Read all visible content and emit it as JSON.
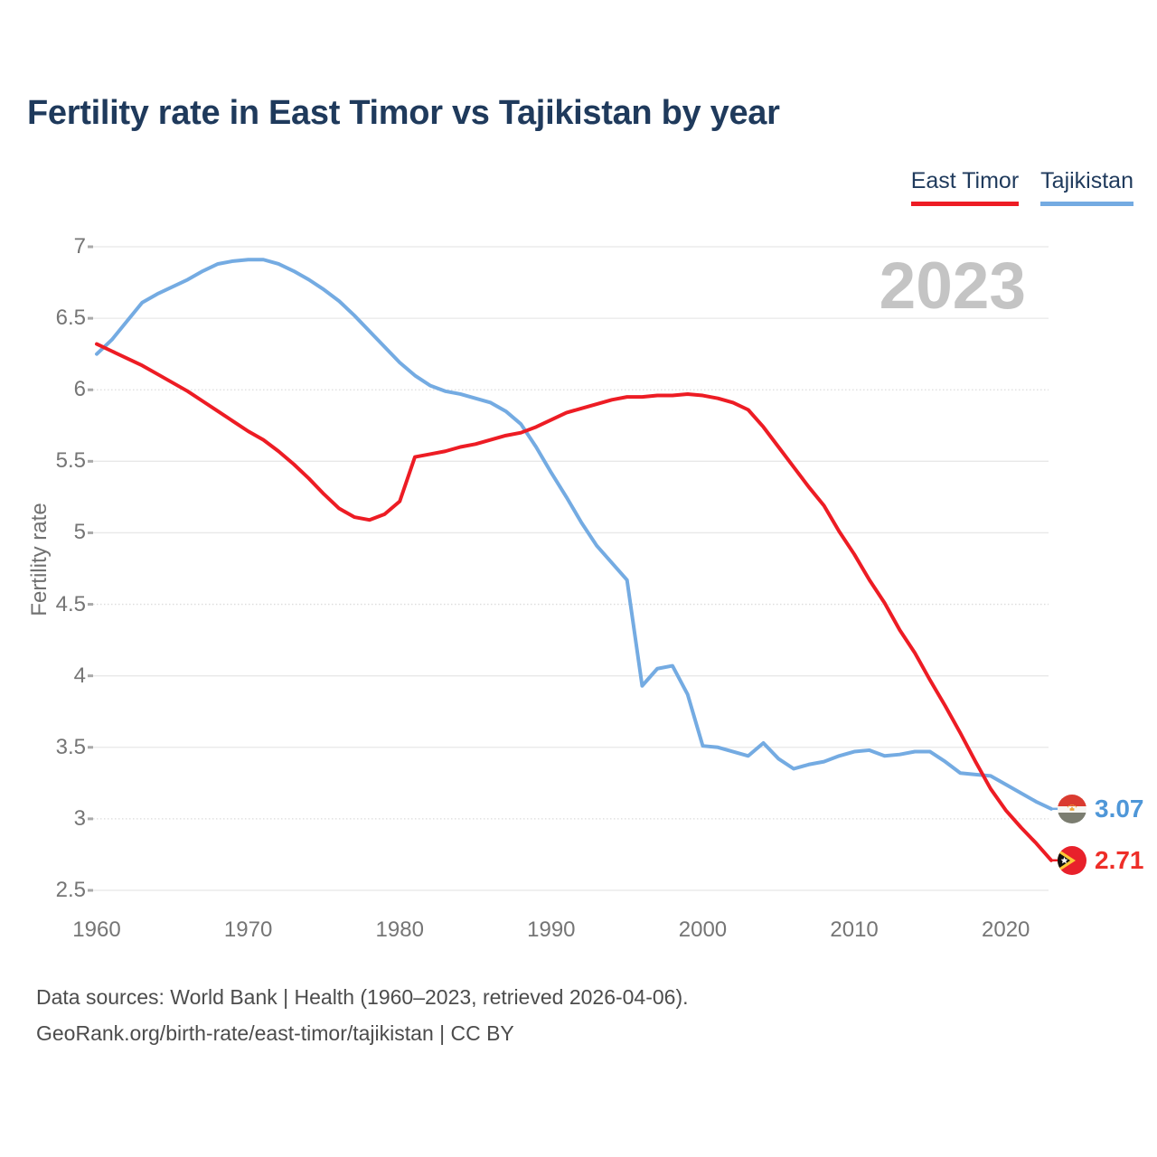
{
  "title": "Fertility rate in East Timor vs Tajikistan by year",
  "watermark": "2023",
  "legend": [
    {
      "label": "East Timor",
      "color": "#ed1c24"
    },
    {
      "label": "Tajikistan",
      "color": "#74abe2"
    }
  ],
  "y_axis": {
    "title": "Fertility rate",
    "ticks": [
      7,
      6.5,
      6,
      5.5,
      5,
      4.5,
      4,
      3.5,
      3,
      2.5
    ],
    "dotted_ticks": [
      6,
      4.5,
      3
    ]
  },
  "x_axis": {
    "ticks": [
      1960,
      1970,
      1980,
      1990,
      2000,
      2010,
      2020
    ]
  },
  "end_labels": [
    {
      "series": "Tajikistan",
      "value": "3.07",
      "color": "#4f97d8"
    },
    {
      "series": "East Timor",
      "value": "2.71",
      "color": "#ee2e28"
    }
  ],
  "footer": {
    "line1": "Data sources: World Bank | Health (1960–2023, retrieved 2026-04-06).",
    "line2": "GeoRank.org/birth-rate/east-timor/tajikistan | CC BY"
  },
  "chart_data": {
    "type": "line",
    "title": "Fertility rate in East Timor vs Tajikistan by year",
    "xlabel": "",
    "ylabel": "Fertility rate",
    "xlim": [
      1960,
      2023
    ],
    "ylim": [
      2.5,
      7
    ],
    "grid": true,
    "legend_position": "top-right",
    "x": [
      1960,
      1961,
      1962,
      1963,
      1964,
      1965,
      1966,
      1967,
      1968,
      1969,
      1970,
      1971,
      1972,
      1973,
      1974,
      1975,
      1976,
      1977,
      1978,
      1979,
      1980,
      1981,
      1982,
      1983,
      1984,
      1985,
      1986,
      1987,
      1988,
      1989,
      1990,
      1991,
      1992,
      1993,
      1994,
      1995,
      1996,
      1997,
      1998,
      1999,
      2000,
      2001,
      2002,
      2003,
      2004,
      2005,
      2006,
      2007,
      2008,
      2009,
      2010,
      2011,
      2012,
      2013,
      2014,
      2015,
      2016,
      2017,
      2018,
      2019,
      2020,
      2021,
      2022,
      2023
    ],
    "series": [
      {
        "name": "Tajikistan",
        "color": "#74abe2",
        "values": [
          6.25,
          6.35,
          6.48,
          6.61,
          6.67,
          6.72,
          6.77,
          6.83,
          6.88,
          6.9,
          6.91,
          6.91,
          6.88,
          6.83,
          6.77,
          6.7,
          6.62,
          6.52,
          6.41,
          6.3,
          6.19,
          6.1,
          6.03,
          5.99,
          5.97,
          5.94,
          5.91,
          5.85,
          5.76,
          5.6,
          5.42,
          5.25,
          5.07,
          4.91,
          4.79,
          4.67,
          3.93,
          4.05,
          4.07,
          3.87,
          3.51,
          3.5,
          3.47,
          3.44,
          3.53,
          3.42,
          3.35,
          3.38,
          3.4,
          3.44,
          3.47,
          3.48,
          3.44,
          3.45,
          3.47,
          3.47,
          3.4,
          3.32,
          3.31,
          3.3,
          3.24,
          3.18,
          3.12,
          3.07
        ]
      },
      {
        "name": "East Timor",
        "color": "#ed1c24",
        "values": [
          6.32,
          6.27,
          6.22,
          6.17,
          6.11,
          6.05,
          5.99,
          5.92,
          5.85,
          5.78,
          5.71,
          5.65,
          5.57,
          5.48,
          5.38,
          5.27,
          5.17,
          5.11,
          5.09,
          5.13,
          5.22,
          5.53,
          5.55,
          5.57,
          5.6,
          5.62,
          5.65,
          5.68,
          5.7,
          5.74,
          5.79,
          5.84,
          5.87,
          5.9,
          5.93,
          5.95,
          5.95,
          5.96,
          5.96,
          5.97,
          5.96,
          5.94,
          5.91,
          5.86,
          5.74,
          5.6,
          5.46,
          5.32,
          5.19,
          5.01,
          4.85,
          4.67,
          4.51,
          4.32,
          4.16,
          3.97,
          3.79,
          3.6,
          3.4,
          3.21,
          3.06,
          2.94,
          2.83,
          2.71
        ]
      }
    ]
  }
}
